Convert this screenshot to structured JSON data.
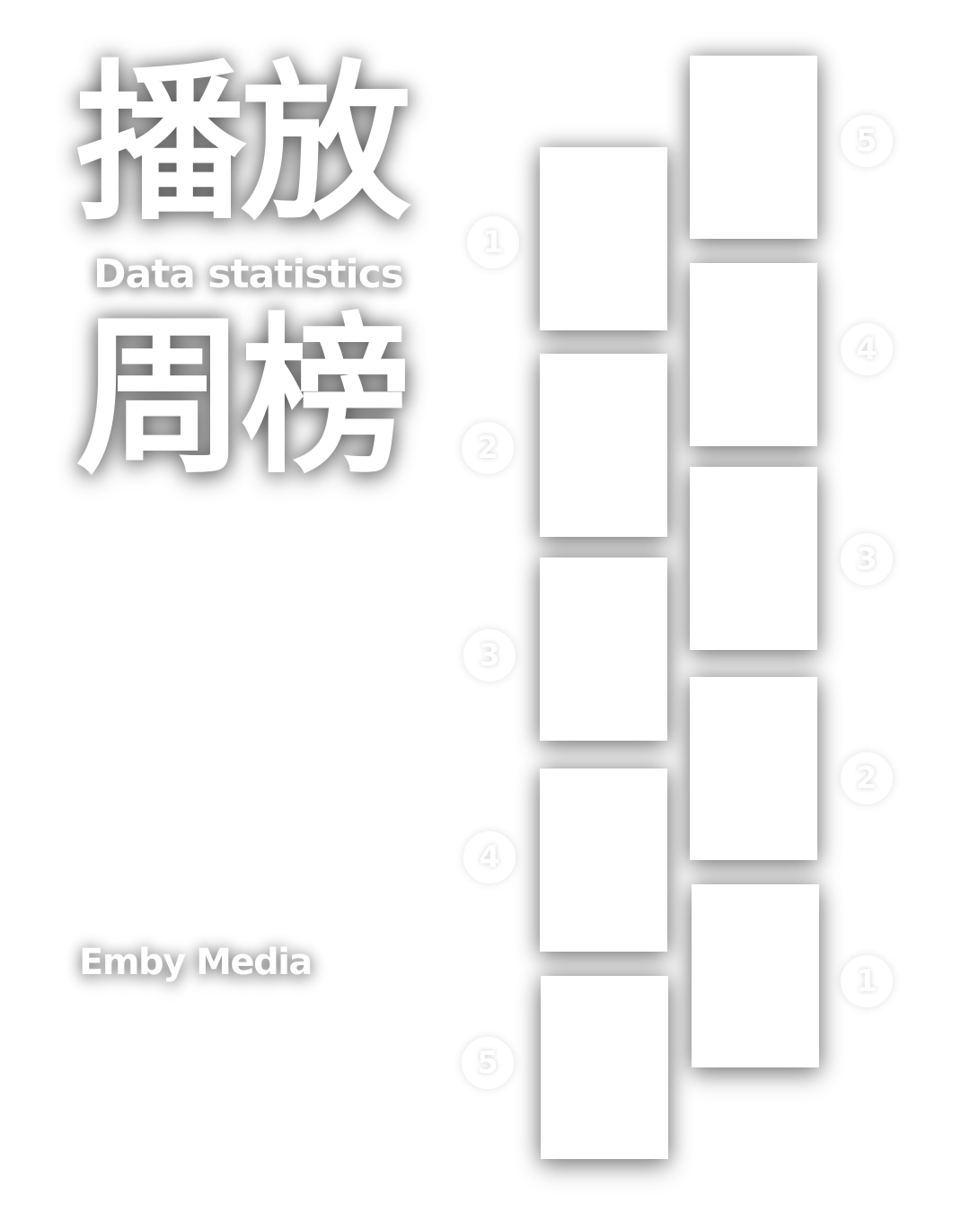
{
  "title": {
    "line1": "播放",
    "subtitle": "Data statistics",
    "line2": "周榜"
  },
  "brand": "Emby Media",
  "left_column": {
    "ranks": [
      "1",
      "2",
      "3",
      "4",
      "5"
    ]
  },
  "right_column": {
    "ranks": [
      "5",
      "4",
      "3",
      "2",
      "1"
    ]
  }
}
